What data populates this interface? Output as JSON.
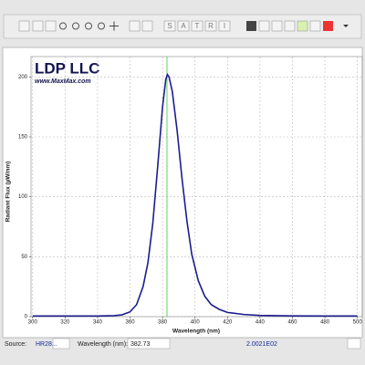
{
  "toolbar": {
    "letters": [
      "S",
      "A",
      "T",
      "R",
      "I"
    ]
  },
  "chart_data": {
    "type": "line",
    "annotations": [
      "LDP LLC",
      "www.MaxMax.com"
    ],
    "x_label": "Wavelength (nm)",
    "y_label": "Radiant Flux (µW/nm)",
    "x": [
      300,
      320,
      340,
      350,
      355,
      360,
      364,
      368,
      371,
      374,
      377,
      380,
      382,
      383,
      384,
      386,
      389,
      392,
      395,
      398,
      402,
      406,
      410,
      415,
      420,
      430,
      440,
      460,
      480,
      500
    ],
    "series": [
      {
        "color": "#1c1c8f",
        "values": [
          0.5,
          0.5,
          0.5,
          0.8,
          1.5,
          4,
          10,
          25,
          45,
          78,
          125,
          175,
          198,
          202,
          200,
          188,
          155,
          115,
          80,
          52,
          30,
          17,
          10,
          6,
          3.5,
          1.8,
          1,
          0.6,
          0.5,
          0.5
        ]
      }
    ],
    "xlim": [
      299,
      503
    ],
    "ylim": [
      0,
      217
    ],
    "xticks": [
      300,
      320,
      340,
      360,
      380,
      400,
      420,
      440,
      460,
      480,
      500
    ],
    "yticks": [
      0,
      50,
      100,
      150,
      200
    ],
    "grid": true,
    "cursor_color": "#5fd35f"
  },
  "status_bar": {
    "source_label": "Source:",
    "source_value": "HR28...",
    "wavelength_label": "Wavelength (nm):",
    "wavelength_value": 382.73,
    "readout": "2.0021E02"
  }
}
